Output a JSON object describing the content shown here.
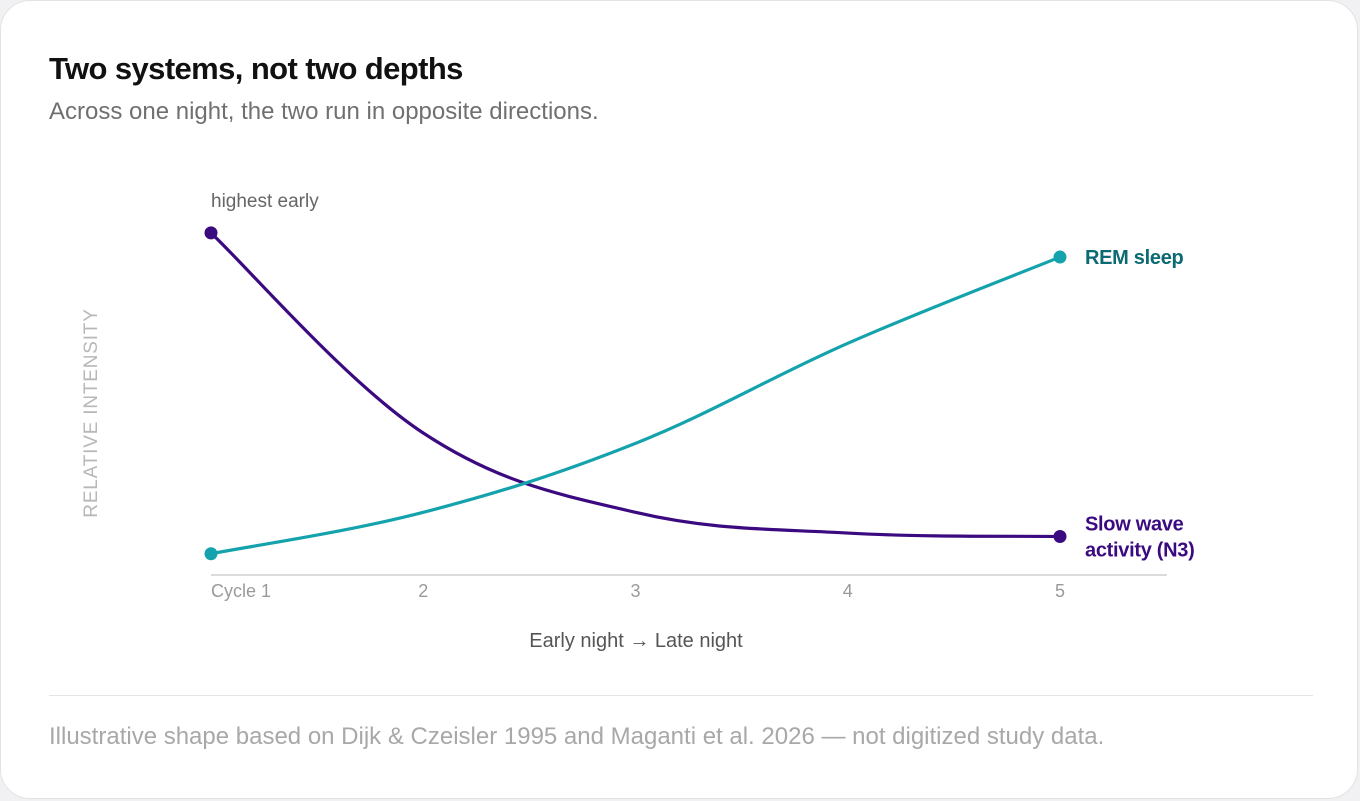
{
  "header": {
    "title": "Two systems, not two depths",
    "subtitle": "Across one night, the two run in opposite directions."
  },
  "footer": {
    "note": "Illustrative shape based on Dijk & Czeisler 1995 and Maganti et al. 2026 — not digitized study data."
  },
  "chart_data": {
    "type": "line",
    "title": "Two systems, not two depths",
    "subtitle": "Across one night, the two run in opposite directions.",
    "xlabel": "Early night → Late night",
    "ylabel": "RELATIVE INTENSITY",
    "x": [
      1,
      2,
      3,
      4,
      5
    ],
    "x_tick_labels": [
      "Cycle 1",
      "2",
      "3",
      "4",
      "5"
    ],
    "xlim": [
      1,
      5.5
    ],
    "ylim": [
      0,
      1.0
    ],
    "grid": false,
    "legend": "direct labels at line ends",
    "series": [
      {
        "name": "Slow wave activity (N3)",
        "label_lines": [
          "Slow wave",
          "activity (N3)"
        ],
        "color": "#3b0a80",
        "values": [
          0.98,
          0.4,
          0.17,
          0.11,
          0.1
        ]
      },
      {
        "name": "REM sleep",
        "label_lines": [
          "REM sleep"
        ],
        "color": "#14a3ac",
        "label_color": "#0c6b72",
        "values": [
          0.05,
          0.17,
          0.37,
          0.66,
          0.91
        ]
      }
    ],
    "annotations": [
      {
        "text": "highest early",
        "series": 0,
        "x": 1
      }
    ],
    "colors": {
      "axis": "#cfcfcf",
      "tick_label": "#9a9a9a",
      "xlabel": "#555555",
      "ylabel": "#b8b8b8",
      "annotation": "#666666"
    }
  }
}
